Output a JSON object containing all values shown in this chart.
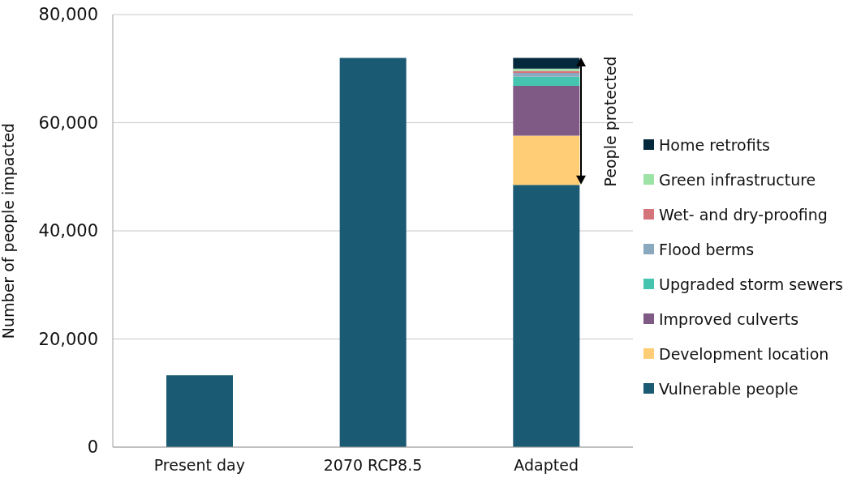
{
  "chart_data": {
    "type": "bar",
    "stacked": true,
    "ylabel": "Number of people impacted",
    "categories": [
      "Present day",
      "2070 RCP8.5",
      "Adapted"
    ],
    "series": [
      {
        "name": "Vulnerable people",
        "color": "#1a5a72",
        "values": [
          13300,
          72000,
          48500
        ]
      },
      {
        "name": "Development location",
        "color": "#fecd76",
        "values": [
          null,
          null,
          9100
        ]
      },
      {
        "name": "Improved culverts",
        "color": "#7e5a84",
        "values": [
          null,
          null,
          9200
        ]
      },
      {
        "name": "Upgraded storm sewers",
        "color": "#45c4b0",
        "values": [
          null,
          null,
          1700
        ]
      },
      {
        "name": "Flood berms",
        "color": "#8aa9bf",
        "values": [
          null,
          null,
          700
        ]
      },
      {
        "name": "Wet- and dry-proofing",
        "color": "#d4737a",
        "values": [
          null,
          null,
          400
        ]
      },
      {
        "name": "Green infrastructure",
        "color": "#9ee3a6",
        "values": [
          null,
          null,
          400
        ]
      },
      {
        "name": "Home retrofits",
        "color": "#04293d",
        "values": [
          null,
          null,
          2000
        ]
      }
    ],
    "ylim": [
      0,
      80000
    ],
    "yticks": [
      0,
      {
        "value": 20000,
        "label": "20,000"
      },
      {
        "value": 40000,
        "label": "40,000"
      },
      {
        "value": 60000,
        "label": "60,000"
      },
      {
        "value": 80000,
        "label": "80,000"
      }
    ],
    "grid": "y",
    "legend": "right",
    "annotations": [
      "People protected"
    ]
  }
}
